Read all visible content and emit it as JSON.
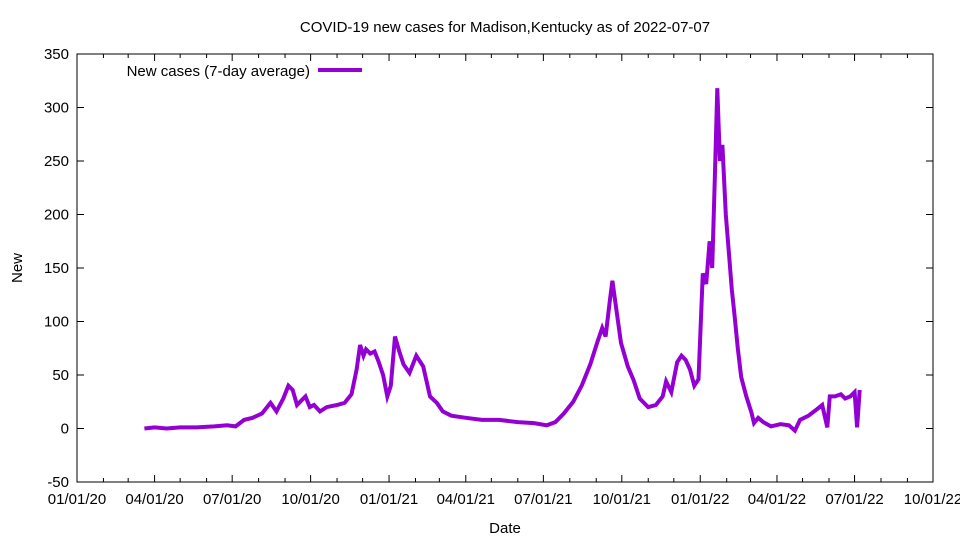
{
  "chart_data": {
    "type": "line",
    "title": "COVID-19 new cases for Madison,Kentucky as of 2022-07-07",
    "xlabel": "Date",
    "ylabel": "New",
    "xlim": [
      "2020-01-01",
      "2022-10-01"
    ],
    "ylim": [
      -50,
      350
    ],
    "x_ticks": [
      "01/01/20",
      "04/01/20",
      "07/01/20",
      "10/01/20",
      "01/01/21",
      "04/01/21",
      "07/01/21",
      "10/01/21",
      "01/01/22",
      "04/01/22",
      "07/01/22",
      "10/01/22"
    ],
    "x_tick_dates": [
      "2020-01-01",
      "2020-04-01",
      "2020-07-01",
      "2020-10-01",
      "2021-01-01",
      "2021-04-01",
      "2021-07-01",
      "2021-10-01",
      "2022-01-01",
      "2022-04-01",
      "2022-07-01",
      "2022-10-01"
    ],
    "y_ticks": [
      -50,
      0,
      50,
      100,
      150,
      200,
      250,
      300,
      350
    ],
    "grid": false,
    "legend_position": "top-left",
    "series": [
      {
        "name": "New cases (7-day average)",
        "color": "#9400d3",
        "points": [
          [
            "2020-03-20",
            0
          ],
          [
            "2020-04-01",
            1
          ],
          [
            "2020-04-15",
            0
          ],
          [
            "2020-05-01",
            1
          ],
          [
            "2020-05-20",
            1
          ],
          [
            "2020-06-10",
            2
          ],
          [
            "2020-06-25",
            3
          ],
          [
            "2020-07-05",
            2
          ],
          [
            "2020-07-15",
            8
          ],
          [
            "2020-07-25",
            10
          ],
          [
            "2020-08-05",
            14
          ],
          [
            "2020-08-15",
            24
          ],
          [
            "2020-08-22",
            16
          ],
          [
            "2020-08-30",
            28
          ],
          [
            "2020-09-05",
            40
          ],
          [
            "2020-09-10",
            36
          ],
          [
            "2020-09-15",
            22
          ],
          [
            "2020-09-20",
            26
          ],
          [
            "2020-09-25",
            30
          ],
          [
            "2020-09-30",
            20
          ],
          [
            "2020-10-05",
            22
          ],
          [
            "2020-10-12",
            16
          ],
          [
            "2020-10-20",
            20
          ],
          [
            "2020-11-01",
            22
          ],
          [
            "2020-11-10",
            24
          ],
          [
            "2020-11-18",
            32
          ],
          [
            "2020-11-24",
            55
          ],
          [
            "2020-11-28",
            78
          ],
          [
            "2020-12-02",
            68
          ],
          [
            "2020-12-05",
            74
          ],
          [
            "2020-12-10",
            70
          ],
          [
            "2020-12-15",
            72
          ],
          [
            "2020-12-20",
            62
          ],
          [
            "2020-12-25",
            50
          ],
          [
            "2020-12-30",
            30
          ],
          [
            "2021-01-03",
            40
          ],
          [
            "2021-01-08",
            86
          ],
          [
            "2021-01-13",
            72
          ],
          [
            "2021-01-18",
            60
          ],
          [
            "2021-01-25",
            52
          ],
          [
            "2021-02-02",
            68
          ],
          [
            "2021-02-10",
            58
          ],
          [
            "2021-02-18",
            30
          ],
          [
            "2021-02-26",
            24
          ],
          [
            "2021-03-05",
            16
          ],
          [
            "2021-03-15",
            12
          ],
          [
            "2021-04-01",
            10
          ],
          [
            "2021-04-20",
            8
          ],
          [
            "2021-05-10",
            8
          ],
          [
            "2021-06-01",
            6
          ],
          [
            "2021-06-20",
            5
          ],
          [
            "2021-07-05",
            3
          ],
          [
            "2021-07-15",
            6
          ],
          [
            "2021-07-25",
            14
          ],
          [
            "2021-08-05",
            25
          ],
          [
            "2021-08-15",
            40
          ],
          [
            "2021-08-25",
            60
          ],
          [
            "2021-09-02",
            80
          ],
          [
            "2021-09-08",
            94
          ],
          [
            "2021-09-12",
            86
          ],
          [
            "2021-09-17",
            120
          ],
          [
            "2021-09-20",
            138
          ],
          [
            "2021-09-24",
            115
          ],
          [
            "2021-09-30",
            80
          ],
          [
            "2021-10-08",
            58
          ],
          [
            "2021-10-15",
            45
          ],
          [
            "2021-10-22",
            28
          ],
          [
            "2021-11-01",
            20
          ],
          [
            "2021-11-10",
            22
          ],
          [
            "2021-11-18",
            30
          ],
          [
            "2021-11-22",
            44
          ],
          [
            "2021-11-28",
            34
          ],
          [
            "2021-12-05",
            62
          ],
          [
            "2021-12-10",
            68
          ],
          [
            "2021-12-15",
            64
          ],
          [
            "2021-12-20",
            55
          ],
          [
            "2021-12-25",
            40
          ],
          [
            "2021-12-30",
            46
          ],
          [
            "2022-01-04",
            145
          ],
          [
            "2022-01-08",
            135
          ],
          [
            "2022-01-12",
            175
          ],
          [
            "2022-01-15",
            150
          ],
          [
            "2022-01-18",
            230
          ],
          [
            "2022-01-21",
            318
          ],
          [
            "2022-01-24",
            250
          ],
          [
            "2022-01-27",
            265
          ],
          [
            "2022-01-31",
            200
          ],
          [
            "2022-02-03",
            170
          ],
          [
            "2022-02-07",
            130
          ],
          [
            "2022-02-10",
            108
          ],
          [
            "2022-02-14",
            75
          ],
          [
            "2022-02-18",
            48
          ],
          [
            "2022-02-24",
            30
          ],
          [
            "2022-03-02",
            15
          ],
          [
            "2022-03-05",
            5
          ],
          [
            "2022-03-10",
            10
          ],
          [
            "2022-03-16",
            6
          ],
          [
            "2022-03-25",
            2
          ],
          [
            "2022-04-05",
            4
          ],
          [
            "2022-04-15",
            3
          ],
          [
            "2022-04-22",
            -2
          ],
          [
            "2022-04-28",
            8
          ],
          [
            "2022-05-08",
            12
          ],
          [
            "2022-05-18",
            18
          ],
          [
            "2022-05-24",
            22
          ],
          [
            "2022-05-30",
            1
          ],
          [
            "2022-06-02",
            30
          ],
          [
            "2022-06-08",
            30
          ],
          [
            "2022-06-15",
            32
          ],
          [
            "2022-06-20",
            28
          ],
          [
            "2022-06-26",
            30
          ],
          [
            "2022-07-01",
            34
          ],
          [
            "2022-07-04",
            1
          ],
          [
            "2022-07-07",
            36
          ]
        ]
      }
    ]
  }
}
